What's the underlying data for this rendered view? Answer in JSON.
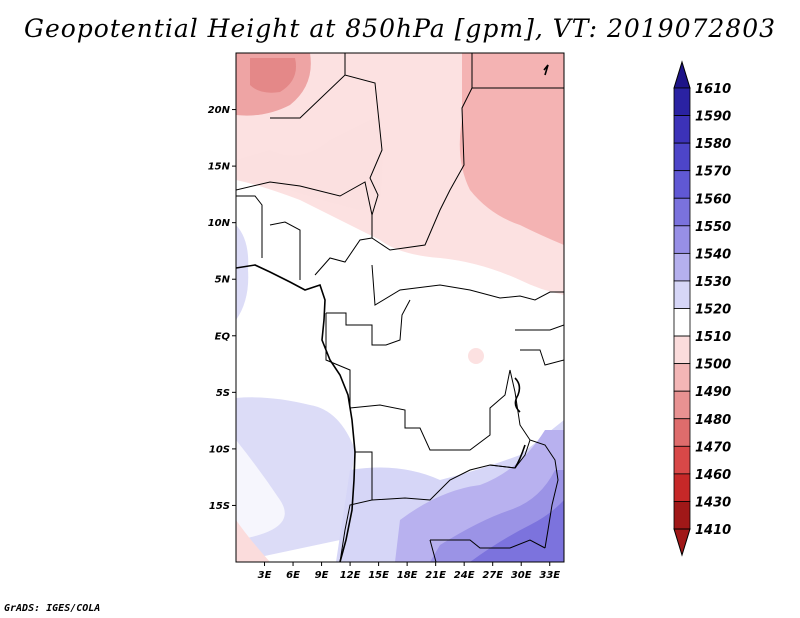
{
  "title": "Geopotential Height at 850hPa [gpm], VT: 2019072803",
  "credit": "GrADS: IGES/COLA",
  "map": {
    "lat_labels": [
      "20N",
      "15N",
      "10N",
      "5N",
      "EQ",
      "5S",
      "10S",
      "15S"
    ],
    "lat_values": [
      20,
      15,
      10,
      5,
      0,
      -5,
      -10,
      -15
    ],
    "lon_labels": [
      "3E",
      "6E",
      "9E",
      "12E",
      "15E",
      "18E",
      "21E",
      "24E",
      "27E",
      "30E",
      "33E"
    ],
    "lon_values": [
      3,
      6,
      9,
      12,
      15,
      18,
      21,
      24,
      27,
      30,
      33
    ],
    "lon_range": [
      0,
      34.5
    ],
    "lat_range": [
      -20,
      25
    ]
  },
  "colorbar": {
    "labels": [
      "1610",
      "1590",
      "1580",
      "1570",
      "1560",
      "1550",
      "1540",
      "1530",
      "1520",
      "1510",
      "1500",
      "1490",
      "1480",
      "1470",
      "1460",
      "1430",
      "1410"
    ],
    "colors": [
      "#1e1488",
      "#2a22a2",
      "#3c32b8",
      "#4d45c8",
      "#6058d4",
      "#7a72dd",
      "#978fe6",
      "#b5b0ee",
      "#d6d6f7",
      "#ffffff",
      "#fbdcdc",
      "#f3b6b6",
      "#e89292",
      "#de6c6c",
      "#d84848",
      "#c62828",
      "#a01818"
    ]
  }
}
